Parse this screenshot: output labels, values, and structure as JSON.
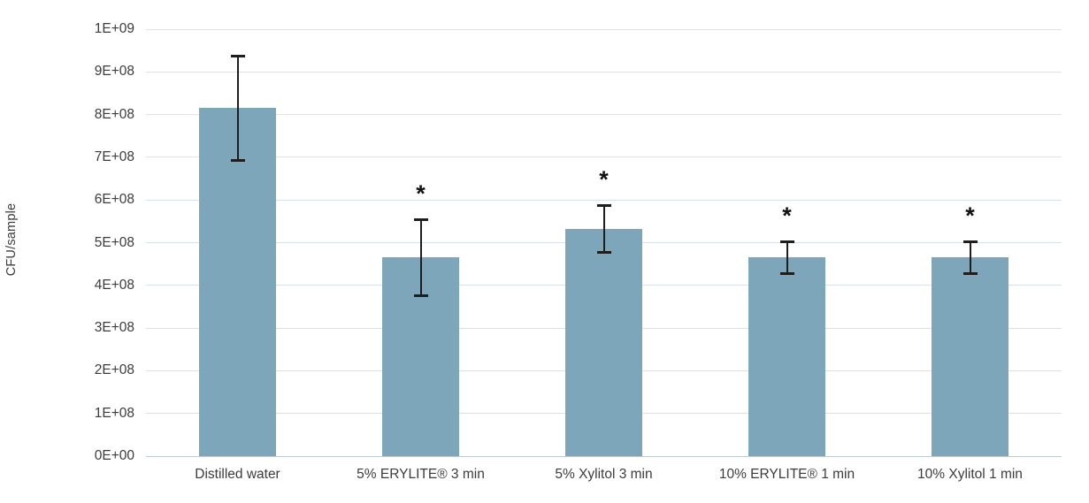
{
  "chart_data": {
    "type": "bar",
    "title": "",
    "xlabel": "",
    "ylabel": "CFU/sample",
    "ylim": [
      0,
      1000000000
    ],
    "grid": true,
    "legend": false,
    "y_ticks": [
      {
        "label": "1E+09",
        "value": 1000000000
      },
      {
        "label": "9E+08",
        "value": 900000000
      },
      {
        "label": "8E+08",
        "value": 800000000
      },
      {
        "label": "7E+08",
        "value": 700000000
      },
      {
        "label": "6E+08",
        "value": 600000000
      },
      {
        "label": "5E+08",
        "value": 500000000
      },
      {
        "label": "4E+08",
        "value": 400000000
      },
      {
        "label": "3E+08",
        "value": 300000000
      },
      {
        "label": "2E+08",
        "value": 200000000
      },
      {
        "label": "1E+08",
        "value": 100000000
      },
      {
        "label": "0E+00",
        "value": 0
      }
    ],
    "categories": [
      "Distilled water",
      "5% ERYLITE® 3 min",
      "5% Xylitol 3 min",
      "10% ERYLITE® 1 min",
      "10% Xylitol 1 min"
    ],
    "values": [
      815000000,
      465000000,
      532000000,
      465000000,
      465000000
    ],
    "error_bars": [
      123000000,
      90000000,
      55000000,
      38000000,
      38000000
    ],
    "significance": [
      false,
      true,
      true,
      true,
      true
    ],
    "significance_marker": "*",
    "bar_color": "#7da6ba",
    "error_bar_color": "#1e1e1e",
    "gridline_color": "#d9e2e7",
    "text_color": "#3c3c3c"
  }
}
